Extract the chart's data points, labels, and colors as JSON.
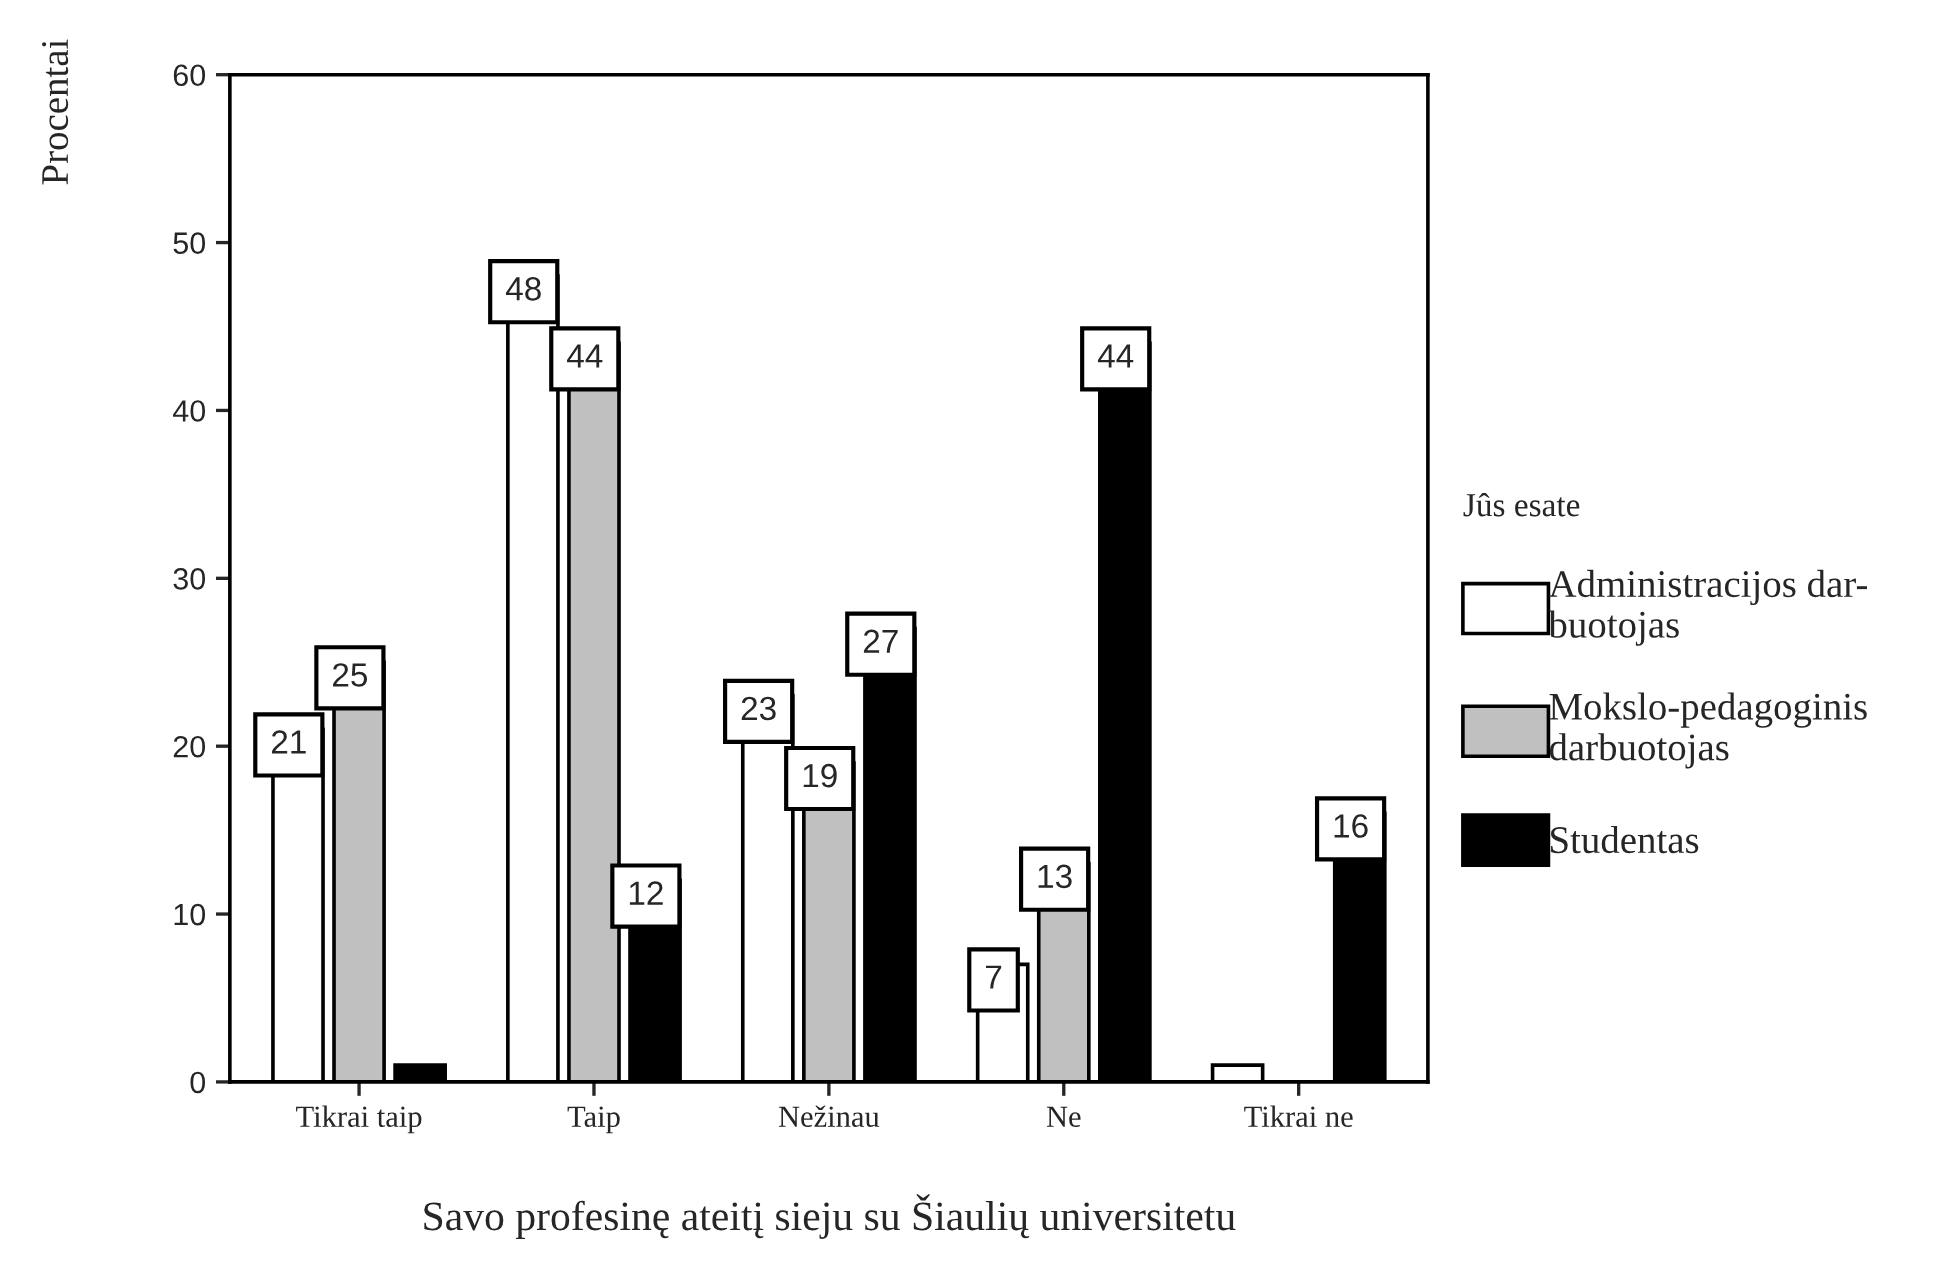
{
  "chart_data": {
    "type": "bar",
    "xlabel": "Savo profesinę ateitį sieju su Šiaulių universitetu",
    "ylabel": "Procentai",
    "categories": [
      "Tikrai taip",
      "Taip",
      "Nežinau",
      "Ne",
      "Tikrai ne"
    ],
    "ylim": [
      0,
      60
    ],
    "yticks": [
      0,
      10,
      20,
      30,
      40,
      50,
      60
    ],
    "grid": false,
    "legend": "right",
    "legend_title": "Jûs esate",
    "series": [
      {
        "name": "Administracijos dar-\nbuotojas",
        "color": "#ffffff",
        "values": [
          21,
          48,
          23,
          7,
          1
        ],
        "value_labels": [
          "21",
          "48",
          "23",
          "7",
          null
        ]
      },
      {
        "name": "Mokslo-pedagoginis\ndarbuotojas",
        "color": "#c0c0c0",
        "values": [
          25,
          44,
          19,
          13,
          null
        ],
        "value_labels": [
          "25",
          "44",
          "19",
          "13",
          null
        ]
      },
      {
        "name": "Studentas",
        "color": "#000000",
        "values": [
          1,
          12,
          27,
          44,
          16
        ],
        "value_labels": [
          null,
          "12",
          "27",
          "44",
          "16"
        ]
      }
    ]
  }
}
